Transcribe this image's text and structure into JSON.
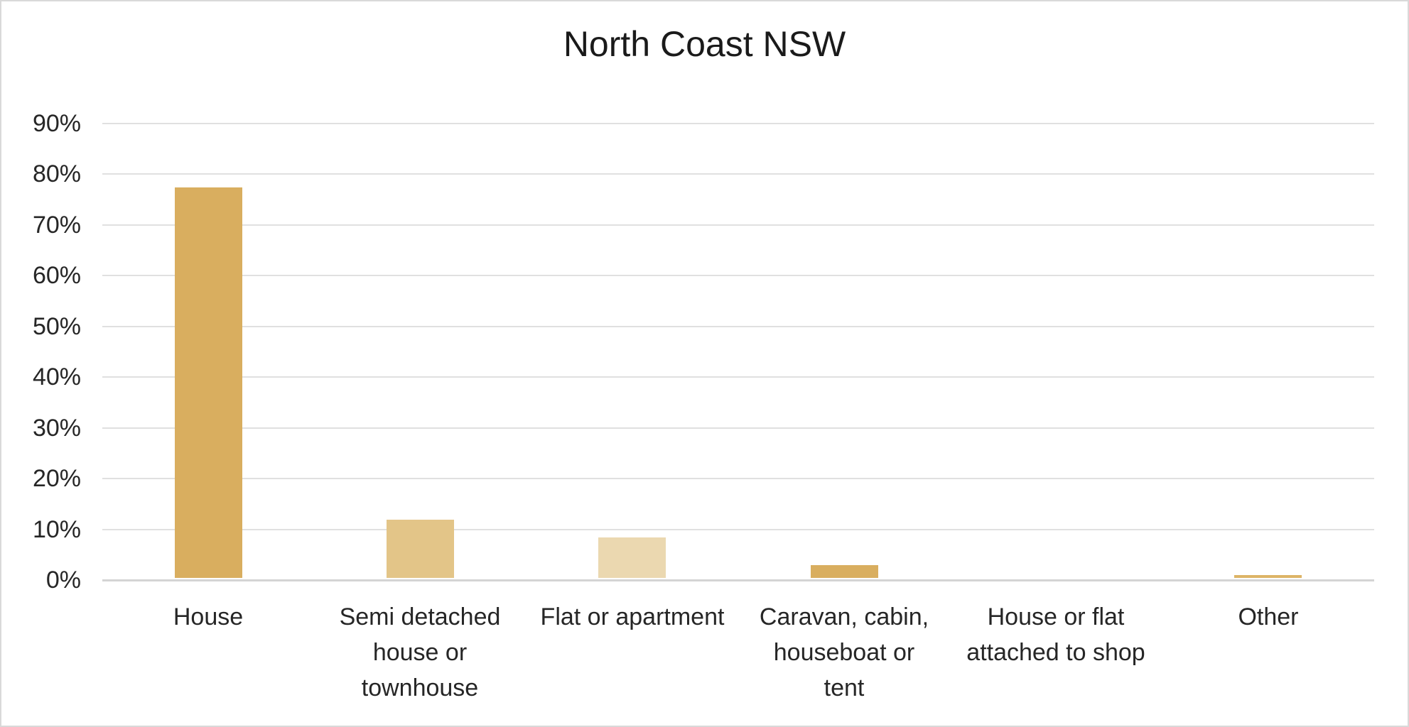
{
  "chart_data": {
    "type": "bar",
    "title": "North Coast NSW",
    "categories": [
      "House",
      "Semi detached house or townhouse",
      "Flat or apartment",
      "Caravan, cabin, houseboat or tent",
      "House or flat attached to shop",
      "Other"
    ],
    "category_lines": [
      [
        "House"
      ],
      [
        "Semi detached",
        "house or",
        "townhouse"
      ],
      [
        "Flat or apartment"
      ],
      [
        "Caravan, cabin,",
        "houseboat or",
        "tent"
      ],
      [
        "House or flat",
        "attached to shop"
      ],
      [
        "Other"
      ]
    ],
    "values": [
      77,
      11.5,
      8,
      2.5,
      0,
      0.5
    ],
    "unit": "%",
    "bar_colors": [
      "#D9AE5F",
      "#E3C588",
      "#EBD8B0",
      "#D9AE5F",
      "#D9AE5F",
      "#DDB466"
    ],
    "ylim": [
      0,
      90
    ],
    "ytick_step": 10,
    "ytick_labels": [
      "0%",
      "10%",
      "20%",
      "30%",
      "40%",
      "50%",
      "60%",
      "70%",
      "80%",
      "90%"
    ],
    "grid": true,
    "legend": "none",
    "xlabel": "",
    "ylabel": ""
  },
  "colors": {
    "gridline": "#E0E0E0",
    "axis_line": "#D4D4D4",
    "text": "#262626",
    "title_text": "#1A1A1A",
    "background": "#FFFFFF",
    "frame_border": "#D9D9D9"
  }
}
